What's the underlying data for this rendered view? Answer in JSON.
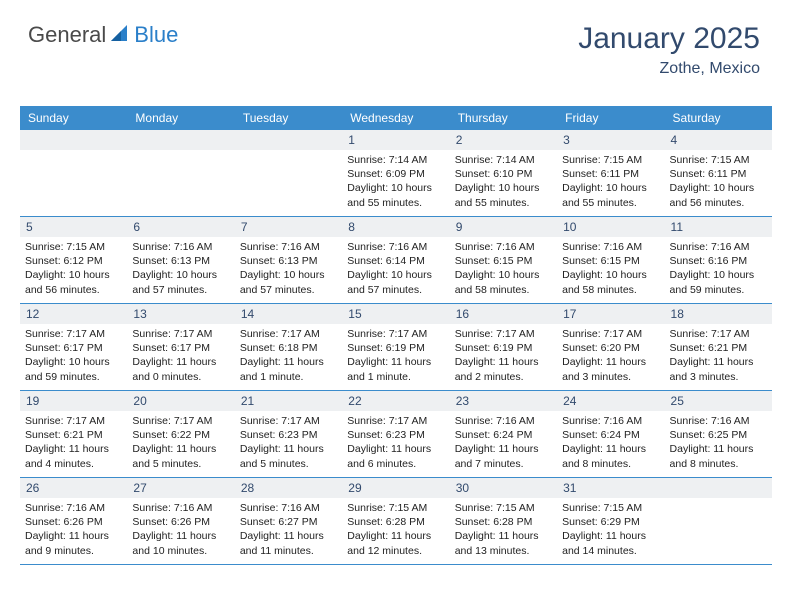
{
  "logo": {
    "part1": "General",
    "part2": "Blue"
  },
  "title": "January 2025",
  "location": "Zothe, Mexico",
  "colors": {
    "header_bg": "#3b8ccc",
    "header_text": "#ffffff",
    "daynum_bg": "#eef0f2",
    "daynum_text": "#324a6d",
    "title_text": "#324a6d",
    "body_text": "#222222",
    "row_border": "#3b8ccc",
    "logo_gray": "#4a4a4a",
    "logo_blue": "#2a7fc9"
  },
  "fonts": {
    "title_size": 30,
    "location_size": 16,
    "header_size": 12,
    "daynum_size": 12,
    "body_size": 10.5
  },
  "day_headers": [
    "Sunday",
    "Monday",
    "Tuesday",
    "Wednesday",
    "Thursday",
    "Friday",
    "Saturday"
  ],
  "weeks": [
    [
      {
        "num": "",
        "lines": [
          "",
          "",
          "",
          ""
        ]
      },
      {
        "num": "",
        "lines": [
          "",
          "",
          "",
          ""
        ]
      },
      {
        "num": "",
        "lines": [
          "",
          "",
          "",
          ""
        ]
      },
      {
        "num": "1",
        "lines": [
          "Sunrise: 7:14 AM",
          "Sunset: 6:09 PM",
          "Daylight: 10 hours",
          "and 55 minutes."
        ]
      },
      {
        "num": "2",
        "lines": [
          "Sunrise: 7:14 AM",
          "Sunset: 6:10 PM",
          "Daylight: 10 hours",
          "and 55 minutes."
        ]
      },
      {
        "num": "3",
        "lines": [
          "Sunrise: 7:15 AM",
          "Sunset: 6:11 PM",
          "Daylight: 10 hours",
          "and 55 minutes."
        ]
      },
      {
        "num": "4",
        "lines": [
          "Sunrise: 7:15 AM",
          "Sunset: 6:11 PM",
          "Daylight: 10 hours",
          "and 56 minutes."
        ]
      }
    ],
    [
      {
        "num": "5",
        "lines": [
          "Sunrise: 7:15 AM",
          "Sunset: 6:12 PM",
          "Daylight: 10 hours",
          "and 56 minutes."
        ]
      },
      {
        "num": "6",
        "lines": [
          "Sunrise: 7:16 AM",
          "Sunset: 6:13 PM",
          "Daylight: 10 hours",
          "and 57 minutes."
        ]
      },
      {
        "num": "7",
        "lines": [
          "Sunrise: 7:16 AM",
          "Sunset: 6:13 PM",
          "Daylight: 10 hours",
          "and 57 minutes."
        ]
      },
      {
        "num": "8",
        "lines": [
          "Sunrise: 7:16 AM",
          "Sunset: 6:14 PM",
          "Daylight: 10 hours",
          "and 57 minutes."
        ]
      },
      {
        "num": "9",
        "lines": [
          "Sunrise: 7:16 AM",
          "Sunset: 6:15 PM",
          "Daylight: 10 hours",
          "and 58 minutes."
        ]
      },
      {
        "num": "10",
        "lines": [
          "Sunrise: 7:16 AM",
          "Sunset: 6:15 PM",
          "Daylight: 10 hours",
          "and 58 minutes."
        ]
      },
      {
        "num": "11",
        "lines": [
          "Sunrise: 7:16 AM",
          "Sunset: 6:16 PM",
          "Daylight: 10 hours",
          "and 59 minutes."
        ]
      }
    ],
    [
      {
        "num": "12",
        "lines": [
          "Sunrise: 7:17 AM",
          "Sunset: 6:17 PM",
          "Daylight: 10 hours",
          "and 59 minutes."
        ]
      },
      {
        "num": "13",
        "lines": [
          "Sunrise: 7:17 AM",
          "Sunset: 6:17 PM",
          "Daylight: 11 hours",
          "and 0 minutes."
        ]
      },
      {
        "num": "14",
        "lines": [
          "Sunrise: 7:17 AM",
          "Sunset: 6:18 PM",
          "Daylight: 11 hours",
          "and 1 minute."
        ]
      },
      {
        "num": "15",
        "lines": [
          "Sunrise: 7:17 AM",
          "Sunset: 6:19 PM",
          "Daylight: 11 hours",
          "and 1 minute."
        ]
      },
      {
        "num": "16",
        "lines": [
          "Sunrise: 7:17 AM",
          "Sunset: 6:19 PM",
          "Daylight: 11 hours",
          "and 2 minutes."
        ]
      },
      {
        "num": "17",
        "lines": [
          "Sunrise: 7:17 AM",
          "Sunset: 6:20 PM",
          "Daylight: 11 hours",
          "and 3 minutes."
        ]
      },
      {
        "num": "18",
        "lines": [
          "Sunrise: 7:17 AM",
          "Sunset: 6:21 PM",
          "Daylight: 11 hours",
          "and 3 minutes."
        ]
      }
    ],
    [
      {
        "num": "19",
        "lines": [
          "Sunrise: 7:17 AM",
          "Sunset: 6:21 PM",
          "Daylight: 11 hours",
          "and 4 minutes."
        ]
      },
      {
        "num": "20",
        "lines": [
          "Sunrise: 7:17 AM",
          "Sunset: 6:22 PM",
          "Daylight: 11 hours",
          "and 5 minutes."
        ]
      },
      {
        "num": "21",
        "lines": [
          "Sunrise: 7:17 AM",
          "Sunset: 6:23 PM",
          "Daylight: 11 hours",
          "and 5 minutes."
        ]
      },
      {
        "num": "22",
        "lines": [
          "Sunrise: 7:17 AM",
          "Sunset: 6:23 PM",
          "Daylight: 11 hours",
          "and 6 minutes."
        ]
      },
      {
        "num": "23",
        "lines": [
          "Sunrise: 7:16 AM",
          "Sunset: 6:24 PM",
          "Daylight: 11 hours",
          "and 7 minutes."
        ]
      },
      {
        "num": "24",
        "lines": [
          "Sunrise: 7:16 AM",
          "Sunset: 6:24 PM",
          "Daylight: 11 hours",
          "and 8 minutes."
        ]
      },
      {
        "num": "25",
        "lines": [
          "Sunrise: 7:16 AM",
          "Sunset: 6:25 PM",
          "Daylight: 11 hours",
          "and 8 minutes."
        ]
      }
    ],
    [
      {
        "num": "26",
        "lines": [
          "Sunrise: 7:16 AM",
          "Sunset: 6:26 PM",
          "Daylight: 11 hours",
          "and 9 minutes."
        ]
      },
      {
        "num": "27",
        "lines": [
          "Sunrise: 7:16 AM",
          "Sunset: 6:26 PM",
          "Daylight: 11 hours",
          "and 10 minutes."
        ]
      },
      {
        "num": "28",
        "lines": [
          "Sunrise: 7:16 AM",
          "Sunset: 6:27 PM",
          "Daylight: 11 hours",
          "and 11 minutes."
        ]
      },
      {
        "num": "29",
        "lines": [
          "Sunrise: 7:15 AM",
          "Sunset: 6:28 PM",
          "Daylight: 11 hours",
          "and 12 minutes."
        ]
      },
      {
        "num": "30",
        "lines": [
          "Sunrise: 7:15 AM",
          "Sunset: 6:28 PM",
          "Daylight: 11 hours",
          "and 13 minutes."
        ]
      },
      {
        "num": "31",
        "lines": [
          "Sunrise: 7:15 AM",
          "Sunset: 6:29 PM",
          "Daylight: 11 hours",
          "and 14 minutes."
        ]
      },
      {
        "num": "",
        "lines": [
          "",
          "",
          "",
          ""
        ]
      }
    ]
  ]
}
